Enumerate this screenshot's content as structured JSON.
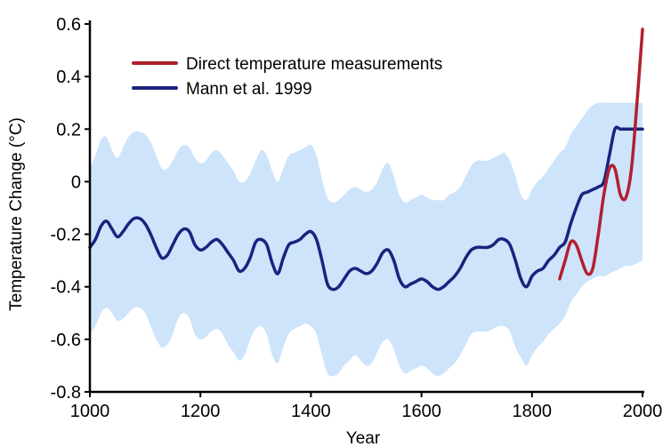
{
  "chart_data": {
    "type": "line",
    "xlabel": "Year",
    "ylabel": "Temperature Change (°C)",
    "xlim": [
      1000,
      2000
    ],
    "ylim": [
      -0.8,
      0.6
    ],
    "x_ticks": [
      "1000",
      "1200",
      "1400",
      "1600",
      "1800",
      "2000"
    ],
    "y_ticks": [
      "0.6",
      "0.4",
      "0.2",
      "0",
      "-0.2",
      "-0.4",
      "-0.6",
      "-0.8"
    ],
    "grid": false,
    "legend_position": "top-left",
    "series": [
      {
        "name": "Direct temperature measurements",
        "color": "#b2202e",
        "x": [
          1850,
          1860,
          1870,
          1880,
          1890,
          1900,
          1910,
          1920,
          1930,
          1940,
          1950,
          1960,
          1970,
          1980,
          1990,
          2000
        ],
        "y": [
          -0.37,
          -0.3,
          -0.23,
          -0.24,
          -0.3,
          -0.35,
          -0.33,
          -0.2,
          -0.05,
          0.05,
          0.05,
          -0.05,
          -0.06,
          0.05,
          0.3,
          0.58
        ]
      },
      {
        "name": "Mann et al. 1999",
        "color": "#1a237e",
        "x": [
          1000,
          1010,
          1020,
          1030,
          1040,
          1050,
          1060,
          1070,
          1080,
          1090,
          1100,
          1110,
          1120,
          1130,
          1140,
          1150,
          1160,
          1170,
          1180,
          1190,
          1200,
          1210,
          1220,
          1230,
          1240,
          1250,
          1260,
          1270,
          1280,
          1290,
          1300,
          1310,
          1320,
          1330,
          1340,
          1350,
          1360,
          1370,
          1380,
          1390,
          1400,
          1410,
          1420,
          1430,
          1440,
          1450,
          1460,
          1470,
          1480,
          1490,
          1500,
          1510,
          1520,
          1530,
          1540,
          1550,
          1560,
          1570,
          1580,
          1590,
          1600,
          1610,
          1620,
          1630,
          1640,
          1650,
          1660,
          1670,
          1680,
          1690,
          1700,
          1710,
          1720,
          1730,
          1740,
          1750,
          1760,
          1770,
          1780,
          1790,
          1800,
          1810,
          1820,
          1830,
          1840,
          1850,
          1860,
          1870,
          1880,
          1890,
          1900,
          1910,
          1920,
          1930,
          1940,
          1950,
          1960,
          1970,
          1980,
          1990,
          2000
        ],
        "y": [
          -0.25,
          -0.22,
          -0.17,
          -0.15,
          -0.18,
          -0.21,
          -0.19,
          -0.16,
          -0.14,
          -0.14,
          -0.16,
          -0.2,
          -0.25,
          -0.29,
          -0.28,
          -0.24,
          -0.2,
          -0.18,
          -0.19,
          -0.24,
          -0.26,
          -0.25,
          -0.23,
          -0.22,
          -0.24,
          -0.27,
          -0.3,
          -0.34,
          -0.33,
          -0.29,
          -0.23,
          -0.22,
          -0.24,
          -0.31,
          -0.35,
          -0.29,
          -0.24,
          -0.23,
          -0.22,
          -0.2,
          -0.19,
          -0.22,
          -0.3,
          -0.39,
          -0.41,
          -0.4,
          -0.37,
          -0.34,
          -0.33,
          -0.34,
          -0.35,
          -0.34,
          -0.31,
          -0.27,
          -0.26,
          -0.3,
          -0.37,
          -0.4,
          -0.39,
          -0.38,
          -0.37,
          -0.38,
          -0.4,
          -0.41,
          -0.4,
          -0.38,
          -0.36,
          -0.33,
          -0.29,
          -0.26,
          -0.25,
          -0.25,
          -0.25,
          -0.24,
          -0.22,
          -0.22,
          -0.24,
          -0.3,
          -0.37,
          -0.4,
          -0.36,
          -0.34,
          -0.33,
          -0.3,
          -0.28,
          -0.25,
          -0.23,
          -0.16,
          -0.1,
          -0.05,
          -0.04,
          -0.03,
          -0.02,
          0.0,
          0.1,
          0.2,
          0.2,
          0.2,
          0.2,
          0.2,
          0.2
        ]
      }
    ],
    "uncertainty_band": {
      "color": "#cde4fb",
      "x": [
        1000,
        1010,
        1020,
        1030,
        1040,
        1050,
        1060,
        1070,
        1080,
        1090,
        1100,
        1110,
        1120,
        1130,
        1140,
        1150,
        1160,
        1170,
        1180,
        1190,
        1200,
        1210,
        1220,
        1230,
        1240,
        1250,
        1260,
        1270,
        1280,
        1290,
        1300,
        1310,
        1320,
        1330,
        1340,
        1350,
        1360,
        1370,
        1380,
        1390,
        1400,
        1410,
        1420,
        1430,
        1440,
        1450,
        1460,
        1470,
        1480,
        1490,
        1500,
        1510,
        1520,
        1530,
        1540,
        1550,
        1560,
        1570,
        1580,
        1590,
        1600,
        1610,
        1620,
        1630,
        1640,
        1650,
        1660,
        1670,
        1680,
        1690,
        1700,
        1710,
        1720,
        1730,
        1740,
        1750,
        1760,
        1770,
        1780,
        1790,
        1800,
        1810,
        1820,
        1830,
        1840,
        1850,
        1860,
        1870,
        1880,
        1890,
        1900,
        1910,
        1920,
        1930,
        1940,
        1950,
        1960,
        1970,
        1980,
        1990,
        2000
      ],
      "upper": [
        0.05,
        0.1,
        0.16,
        0.17,
        0.12,
        0.09,
        0.13,
        0.17,
        0.19,
        0.19,
        0.18,
        0.15,
        0.1,
        0.05,
        0.05,
        0.08,
        0.12,
        0.14,
        0.13,
        0.09,
        0.07,
        0.08,
        0.11,
        0.12,
        0.1,
        0.07,
        0.04,
        0.0,
        0.0,
        0.03,
        0.08,
        0.12,
        0.1,
        0.04,
        0.0,
        0.05,
        0.1,
        0.11,
        0.12,
        0.13,
        0.14,
        0.1,
        0.01,
        -0.06,
        -0.08,
        -0.07,
        -0.05,
        -0.03,
        -0.02,
        -0.03,
        -0.04,
        -0.03,
        0.0,
        0.05,
        0.07,
        0.02,
        -0.05,
        -0.08,
        -0.07,
        -0.06,
        -0.05,
        -0.06,
        -0.07,
        -0.07,
        -0.07,
        -0.05,
        -0.04,
        -0.02,
        0.02,
        0.06,
        0.08,
        0.08,
        0.08,
        0.09,
        0.1,
        0.11,
        0.08,
        0.02,
        -0.05,
        -0.07,
        -0.03,
        0.0,
        0.02,
        0.05,
        0.08,
        0.11,
        0.13,
        0.18,
        0.21,
        0.24,
        0.27,
        0.29,
        0.3,
        0.3,
        0.3,
        0.3,
        0.3,
        0.3,
        0.3,
        0.3,
        0.3
      ],
      "lower": [
        -0.58,
        -0.55,
        -0.5,
        -0.48,
        -0.5,
        -0.53,
        -0.52,
        -0.5,
        -0.48,
        -0.48,
        -0.5,
        -0.55,
        -0.6,
        -0.63,
        -0.62,
        -0.58,
        -0.52,
        -0.5,
        -0.52,
        -0.58,
        -0.6,
        -0.59,
        -0.57,
        -0.56,
        -0.58,
        -0.62,
        -0.65,
        -0.68,
        -0.66,
        -0.6,
        -0.56,
        -0.55,
        -0.58,
        -0.66,
        -0.69,
        -0.63,
        -0.58,
        -0.56,
        -0.55,
        -0.54,
        -0.55,
        -0.58,
        -0.66,
        -0.73,
        -0.74,
        -0.73,
        -0.7,
        -0.68,
        -0.66,
        -0.68,
        -0.7,
        -0.69,
        -0.65,
        -0.61,
        -0.6,
        -0.64,
        -0.7,
        -0.73,
        -0.72,
        -0.71,
        -0.7,
        -0.71,
        -0.73,
        -0.74,
        -0.73,
        -0.71,
        -0.69,
        -0.66,
        -0.62,
        -0.58,
        -0.57,
        -0.57,
        -0.57,
        -0.56,
        -0.55,
        -0.55,
        -0.57,
        -0.63,
        -0.67,
        -0.7,
        -0.66,
        -0.63,
        -0.61,
        -0.58,
        -0.56,
        -0.54,
        -0.51,
        -0.46,
        -0.43,
        -0.4,
        -0.38,
        -0.37,
        -0.36,
        -0.36,
        -0.35,
        -0.34,
        -0.33,
        -0.32,
        -0.32,
        -0.31,
        -0.3
      ]
    }
  }
}
